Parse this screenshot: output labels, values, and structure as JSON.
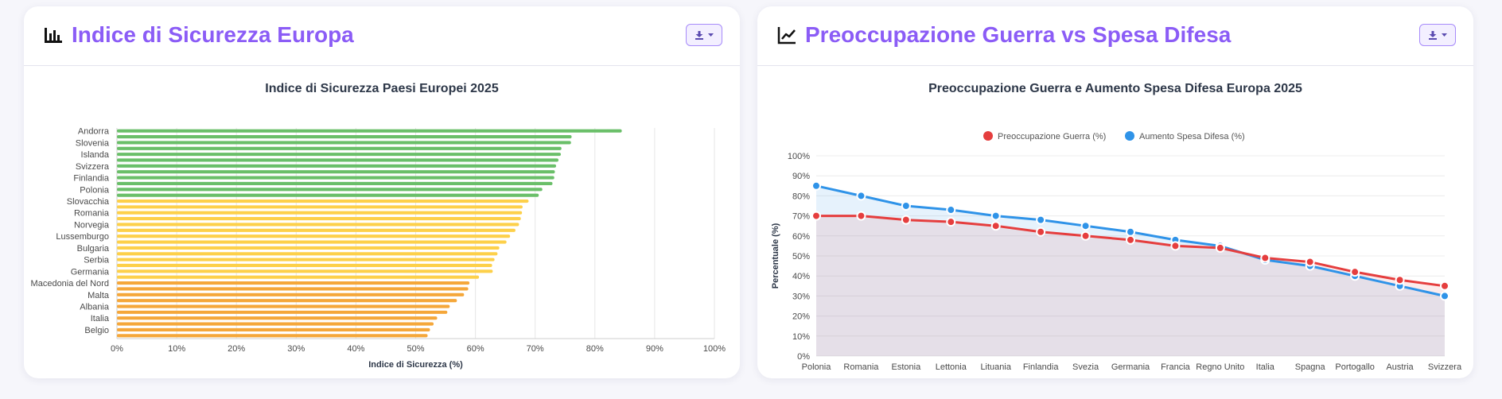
{
  "colors": {
    "accent": "#8b5cf6",
    "bar_high": "#6abf69",
    "bar_mid": "#fdd04a",
    "bar_low": "#f5a73a",
    "war_series": "#e53e3e",
    "defense_series": "#2f93e8"
  },
  "left_panel": {
    "title": "Indice di Sicurezza Europa",
    "icon": "bar-chart-icon",
    "download_icon": "download-icon"
  },
  "right_panel": {
    "title": "Preoccupazione Guerra vs Spesa Difesa",
    "icon": "line-chart-icon",
    "download_icon": "download-icon"
  },
  "chart_data": [
    {
      "type": "bar",
      "orientation": "horizontal",
      "title": "Indice di Sicurezza Paesi Europei 2025",
      "xlabel": "Indice di Sicurezza (%)",
      "ylabel": "",
      "xlim": [
        0,
        100
      ],
      "xticks": [
        "0%",
        "10%",
        "20%",
        "30%",
        "40%",
        "50%",
        "60%",
        "70%",
        "80%",
        "90%",
        "100%"
      ],
      "categories": [
        "Andorra",
        "",
        "Slovenia",
        "",
        "Islanda",
        "",
        "Svizzera",
        "",
        "Finlandia",
        "",
        "Polonia",
        "",
        "Slovacchia",
        "",
        "Romania",
        "",
        "Norvegia",
        "",
        "Lussemburgo",
        "",
        "Bulgaria",
        "",
        "Serbia",
        "",
        "Germania",
        "",
        "Macedonia del Nord",
        "",
        "Malta",
        "",
        "Albania",
        "",
        "Italia",
        "",
        "Belgio",
        ""
      ],
      "values": [
        84.5,
        76.1,
        76.0,
        74.4,
        74.3,
        73.9,
        73.5,
        73.3,
        73.2,
        72.9,
        71.2,
        70.6,
        68.9,
        67.9,
        67.8,
        67.6,
        67.3,
        66.7,
        65.8,
        65.2,
        64.0,
        63.7,
        63.2,
        62.8,
        62.9,
        60.6,
        59.0,
        58.8,
        58.1,
        56.9,
        55.7,
        55.3,
        53.6,
        53.0,
        52.4,
        52.0
      ],
      "grid": true
    },
    {
      "type": "line",
      "title": "Preoccupazione Guerra e Aumento Spesa Difesa Europa 2025",
      "ylabel": "Percentuale (%)",
      "ylim": [
        0,
        100
      ],
      "yticks": [
        "0%",
        "10%",
        "20%",
        "30%",
        "40%",
        "50%",
        "60%",
        "70%",
        "80%",
        "90%",
        "100%"
      ],
      "categories": [
        "Polonia",
        "Romania",
        "Estonia",
        "Lettonia",
        "Lituania",
        "Finlandia",
        "Svezia",
        "Germania",
        "Francia",
        "Regno Unito",
        "Italia",
        "Spagna",
        "Portogallo",
        "Austria",
        "Svizzera"
      ],
      "series": [
        {
          "name": "Preoccupazione Guerra (%)",
          "values": [
            70,
            70,
            68,
            67,
            65,
            62,
            60,
            58,
            55,
            54,
            49,
            47,
            42,
            38,
            35
          ]
        },
        {
          "name": "Aumento Spesa Difesa (%)",
          "values": [
            85,
            80,
            75,
            73,
            70,
            68,
            65,
            62,
            58,
            55,
            48,
            45,
            40,
            35,
            30
          ]
        }
      ],
      "legend": "top",
      "grid": true
    }
  ]
}
